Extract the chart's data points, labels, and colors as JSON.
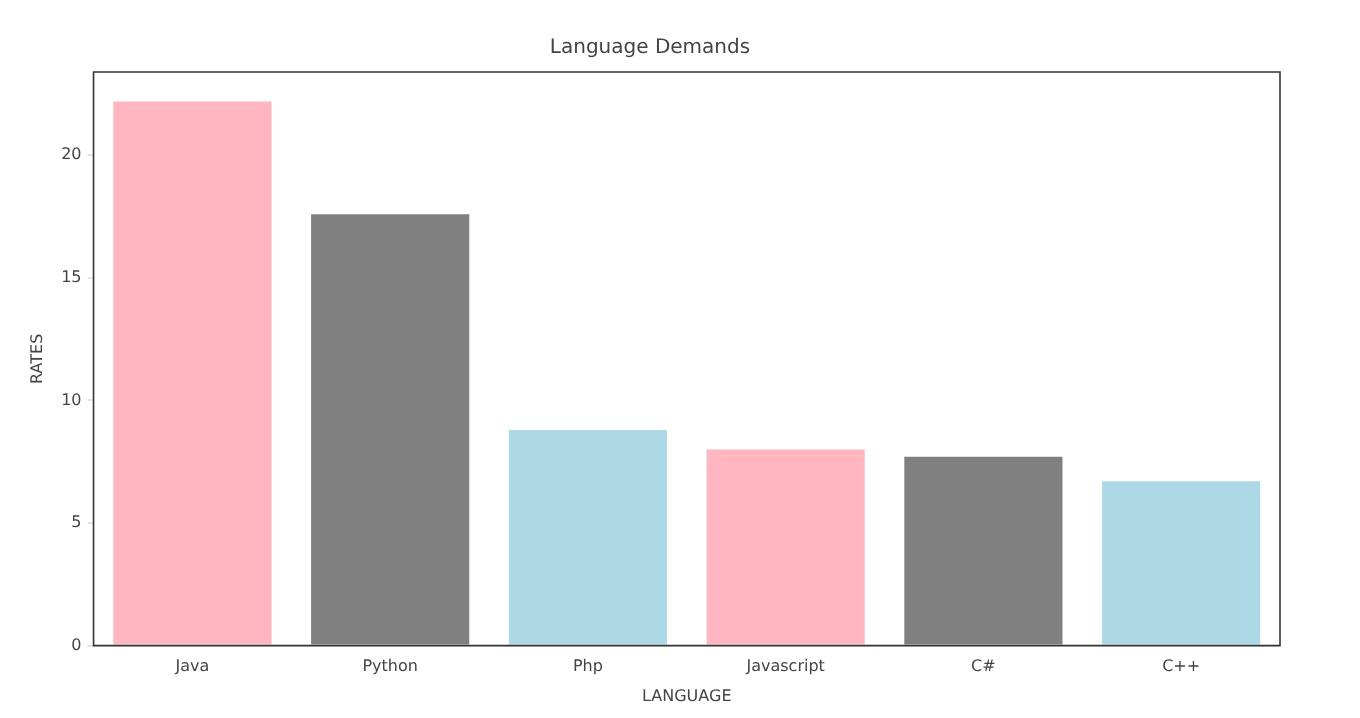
{
  "chart_data": {
    "type": "bar",
    "title": "Language Demands",
    "xlabel": "LANGUAGE",
    "ylabel": "RATES",
    "categories": [
      "Java",
      "Python",
      "Php",
      "Javascript",
      "C#",
      "C++"
    ],
    "values": [
      22.2,
      17.6,
      8.8,
      8.0,
      7.7,
      6.7
    ],
    "colors": [
      "#ffb6c1",
      "#808080",
      "#add8e6",
      "#ffb6c1",
      "#808080",
      "#add8e6"
    ],
    "ylim": [
      0,
      23.4
    ],
    "yticks": [
      0,
      5,
      10,
      15,
      20
    ],
    "grid": false,
    "legend": false
  }
}
